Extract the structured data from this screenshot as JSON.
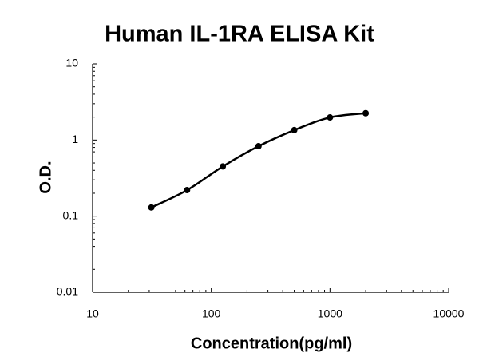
{
  "chart_data": {
    "type": "line",
    "title": "Human IL-1RA ELISA Kit",
    "xlabel": "Concentration(pg/ml)",
    "ylabel": "O.D.",
    "x": [
      31.25,
      62.5,
      125,
      250,
      500,
      1000,
      2000
    ],
    "series": [
      {
        "color": "#000000",
        "values": [
          0.13,
          0.22,
          0.45,
          0.83,
          1.35,
          1.98,
          2.25
        ]
      }
    ],
    "xlim": [
      10,
      10000
    ],
    "xticks": [
      10,
      100,
      1000,
      10000
    ],
    "ylim": [
      0.01,
      10
    ],
    "yticks": [
      0.01,
      0.1,
      1,
      10
    ],
    "xscale": "log",
    "yscale": "log",
    "grid": false
  }
}
